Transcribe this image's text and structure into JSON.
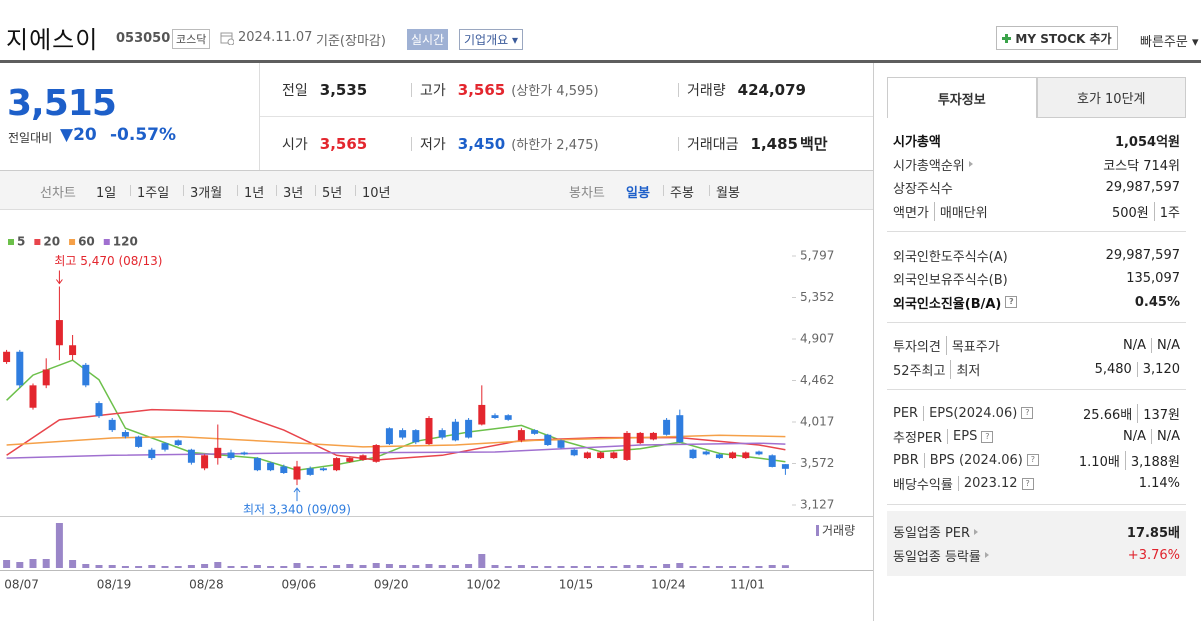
{
  "header": {
    "name": "지에스이",
    "code": "053050",
    "market": "코스닥",
    "date": "2024.11.07",
    "basis": "기준(장마감)",
    "realtime": "실시간",
    "overview": "기업개요",
    "mystock": "MY STOCK 추가",
    "quick_order": "빠른주문"
  },
  "price": {
    "current": "3,515",
    "change_label": "전일대비",
    "change": "20",
    "change_rate": "-0.57%"
  },
  "summary": [
    [
      {
        "label": "전일",
        "value": "3,535"
      },
      {
        "label": "고가",
        "value": "3,565",
        "note": "(상한가 4,595)",
        "tone": "up"
      },
      {
        "label": "거래량",
        "value": "424,079"
      }
    ],
    [
      {
        "label": "시가",
        "value": "3,565",
        "tone": "up"
      },
      {
        "label": "저가",
        "value": "3,450",
        "note": "(하한가 2,475)",
        "tone": "down"
      },
      {
        "label": "거래대금",
        "value": "1,485",
        "unit": "백만"
      }
    ]
  ],
  "toolbar": {
    "line_label": "선차트",
    "line_periods": [
      "1일",
      "1주일",
      "3개월",
      "1년",
      "3년",
      "5년",
      "10년"
    ],
    "candle_label": "봉차트",
    "candle_periods": [
      "일봉",
      "주봉",
      "월봉"
    ]
  },
  "chart_data": {
    "type": "candlestick",
    "up_color": "#e3262e",
    "down_color": "#2f7ddf",
    "categories": [
      "08/07",
      null,
      null,
      null,
      null,
      null,
      null,
      "08/19",
      null,
      null,
      null,
      null,
      null,
      null,
      "08/28",
      null,
      null,
      null,
      null,
      null,
      null,
      "09/06",
      null,
      null,
      null,
      null,
      null,
      null,
      "09/20",
      null,
      null,
      null,
      null,
      null,
      null,
      "10/02",
      null,
      null,
      null,
      null,
      null,
      null,
      "10/15",
      null,
      null,
      null,
      null,
      null,
      null,
      "10/24",
      null,
      null,
      null,
      null,
      null,
      "11/01",
      null,
      null,
      null,
      null
    ],
    "open": [
      4660,
      4770,
      4170,
      4410,
      4840,
      4735,
      4630,
      4220,
      4040,
      3910,
      3860,
      3720,
      3790,
      3820,
      3720,
      3520,
      3630,
      3690,
      3690,
      3630,
      3580,
      3540,
      3400,
      3520,
      3520,
      3500,
      3590,
      3610,
      3590,
      3950,
      3930,
      3930,
      3780,
      3930,
      4020,
      4040,
      3990,
      4090,
      4090,
      3820,
      3930,
      3880,
      3820,
      3720,
      3630,
      3630,
      3630,
      3610,
      3790,
      3830,
      4040,
      4090,
      3720,
      3700,
      3670,
      3630,
      3630,
      3700,
      3660,
      3565
    ],
    "high": [
      4790,
      4790,
      4430,
      4700,
      5470,
      4950,
      4650,
      4240,
      4060,
      3930,
      3870,
      3740,
      3800,
      3830,
      3730,
      3670,
      3990,
      3720,
      3700,
      3640,
      3590,
      3560,
      3600,
      3540,
      3530,
      3640,
      3640,
      3670,
      3780,
      3960,
      3950,
      3940,
      4080,
      3950,
      4050,
      4060,
      4410,
      4110,
      4100,
      3950,
      3940,
      3890,
      3830,
      3730,
      3700,
      3700,
      3700,
      3920,
      3910,
      3910,
      4060,
      4150,
      3730,
      3710,
      3680,
      3700,
      3700,
      3710,
      3670,
      3565
    ],
    "low": [
      4640,
      4380,
      4150,
      4380,
      4680,
      4680,
      4390,
      4060,
      3910,
      3840,
      3740,
      3610,
      3700,
      3760,
      3560,
      3500,
      3560,
      3610,
      3660,
      3490,
      3490,
      3460,
      3340,
      3440,
      3490,
      3490,
      3580,
      3600,
      3580,
      3770,
      3830,
      3780,
      3770,
      3830,
      3810,
      3840,
      3980,
      4050,
      4030,
      3800,
      3880,
      3760,
      3730,
      3650,
      3620,
      3620,
      3620,
      3600,
      3780,
      3820,
      3870,
      3790,
      3620,
      3660,
      3620,
      3620,
      3620,
      3660,
      3530,
      3450
    ],
    "close": [
      4770,
      4410,
      4410,
      4580,
      5110,
      4840,
      4410,
      4080,
      3930,
      3860,
      3750,
      3630,
      3720,
      3770,
      3580,
      3660,
      3740,
      3630,
      3670,
      3500,
      3500,
      3470,
      3540,
      3450,
      3500,
      3630,
      3630,
      3660,
      3770,
      3780,
      3850,
      3800,
      4060,
      3850,
      3820,
      3850,
      4200,
      4060,
      4040,
      3930,
      3890,
      3770,
      3740,
      3660,
      3690,
      3690,
      3690,
      3900,
      3900,
      3900,
      3880,
      3800,
      3630,
      3670,
      3630,
      3690,
      3690,
      3670,
      3535,
      3515
    ],
    "ylim": [
      3009,
      6183
    ],
    "yticks": [
      {
        "value": 5797,
        "label": "5,797"
      },
      {
        "value": 5352,
        "label": "5,352"
      },
      {
        "value": 4907,
        "label": "4,907"
      },
      {
        "value": 4462,
        "label": "4,462"
      },
      {
        "value": 4017,
        "label": "4,017"
      },
      {
        "value": 3572,
        "label": "3,572"
      },
      {
        "value": 3127,
        "label": "3,127"
      }
    ],
    "moving_averages": [
      {
        "name": "5",
        "color": "#6cc04a",
        "x": [
          0,
          2,
          5,
          7,
          9,
          14,
          19,
          22,
          25,
          28,
          31,
          35,
          39,
          42,
          45,
          48,
          51,
          54,
          57,
          59
        ],
        "values": [
          4250,
          4520,
          4680,
          4470,
          3950,
          3690,
          3630,
          3500,
          3560,
          3640,
          3810,
          3910,
          3980,
          3820,
          3700,
          3730,
          3800,
          3680,
          3630,
          3590
        ]
      },
      {
        "name": "20",
        "color": "#e8454c",
        "x": [
          0,
          4,
          11,
          17,
          21,
          25,
          28,
          33,
          39,
          45,
          51,
          57,
          59
        ],
        "values": [
          3660,
          4040,
          4150,
          4130,
          3930,
          3660,
          3610,
          3660,
          3820,
          3850,
          3850,
          3770,
          3720
        ]
      },
      {
        "name": "60",
        "color": "#f5a048",
        "x": [
          0,
          8,
          13,
          21,
          27,
          34,
          40,
          48,
          54,
          59
        ],
        "values": [
          3770,
          3845,
          3860,
          3800,
          3750,
          3770,
          3820,
          3850,
          3875,
          3860
        ]
      },
      {
        "name": "120",
        "color": "#a070d0",
        "x": [
          0,
          8,
          22,
          37,
          48,
          57,
          59
        ],
        "values": [
          3630,
          3660,
          3685,
          3695,
          3770,
          3790,
          3780
        ]
      }
    ],
    "volume": {
      "name": "거래량",
      "color": "#9a86c8",
      "ylim": [
        0,
        7500000
      ],
      "values": [
        1200000,
        900000,
        1350000,
        1350000,
        6750000,
        1200000,
        600000,
        450000,
        450000,
        300000,
        300000,
        450000,
        300000,
        300000,
        450000,
        600000,
        900000,
        300000,
        300000,
        450000,
        300000,
        300000,
        750000,
        300000,
        300000,
        450000,
        600000,
        450000,
        750000,
        600000,
        450000,
        450000,
        600000,
        450000,
        450000,
        600000,
        2100000,
        450000,
        300000,
        450000,
        300000,
        300000,
        300000,
        300000,
        300000,
        300000,
        300000,
        450000,
        450000,
        300000,
        600000,
        750000,
        300000,
        300000,
        300000,
        300000,
        300000,
        300000,
        450000,
        424079
      ]
    },
    "annotations": [
      {
        "text": "최고 5,470 (08/13)",
        "index": 4,
        "value": 5470,
        "color": "#e3262e"
      },
      {
        "text": "최저 3,340 (09/09)",
        "index": 22,
        "value": 3340,
        "color": "#2f7ddf"
      }
    ]
  },
  "info": {
    "tabs": [
      "투자정보",
      "호가 10단계"
    ],
    "sections": [
      {
        "rows": [
          {
            "label": [
              "시가총액"
            ],
            "value": [
              "1,054억원"
            ],
            "bold": true
          },
          {
            "label": [
              "시가총액순위"
            ],
            "icon": "arrow",
            "value": [
              "코스닥 714위"
            ]
          },
          {
            "label": [
              "상장주식수"
            ],
            "value": [
              "29,987,597"
            ]
          },
          {
            "label": [
              "액면가",
              "매매단위"
            ],
            "value": [
              "500원",
              "1주"
            ]
          }
        ]
      },
      {
        "rows": [
          {
            "label": [
              "외국인한도주식수(A)"
            ],
            "value": [
              "29,987,597"
            ]
          },
          {
            "label": [
              "외국인보유주식수(B)"
            ],
            "value": [
              "135,097"
            ]
          },
          {
            "label": [
              "외국인소진율(B/A)"
            ],
            "icon": "help",
            "value": [
              "0.45%"
            ],
            "bold": true
          }
        ]
      },
      {
        "rows": [
          {
            "label": [
              "투자의견",
              "목표주가"
            ],
            "value": [
              "N/A",
              "N/A"
            ]
          },
          {
            "label": [
              "52주최고",
              "최저"
            ],
            "value": [
              "5,480",
              "3,120"
            ]
          }
        ]
      },
      {
        "rows": [
          {
            "label": [
              "PER",
              "EPS(2024.06)"
            ],
            "icon": "help",
            "value": [
              "25.66배",
              "137원"
            ]
          },
          {
            "label": [
              "추정PER",
              "EPS"
            ],
            "icon": "help",
            "value": [
              "N/A",
              "N/A"
            ]
          },
          {
            "label": [
              "PBR",
              "BPS (2024.06)"
            ],
            "icon": "help",
            "value": [
              "1.10배",
              "3,188원"
            ]
          },
          {
            "label": [
              "배당수익률",
              "2023.12"
            ],
            "icon": "help",
            "value": [
              "1.14%"
            ]
          }
        ]
      }
    ],
    "peer": {
      "rows": [
        {
          "label": [
            "동일업종 PER"
          ],
          "icon": "arrow",
          "value": [
            "17.85배"
          ],
          "value_bold": true
        },
        {
          "label": [
            "동일업종 등락률"
          ],
          "icon": "arrow",
          "value": [
            "+3.76%"
          ],
          "value_color": "#e0242e"
        }
      ]
    }
  }
}
